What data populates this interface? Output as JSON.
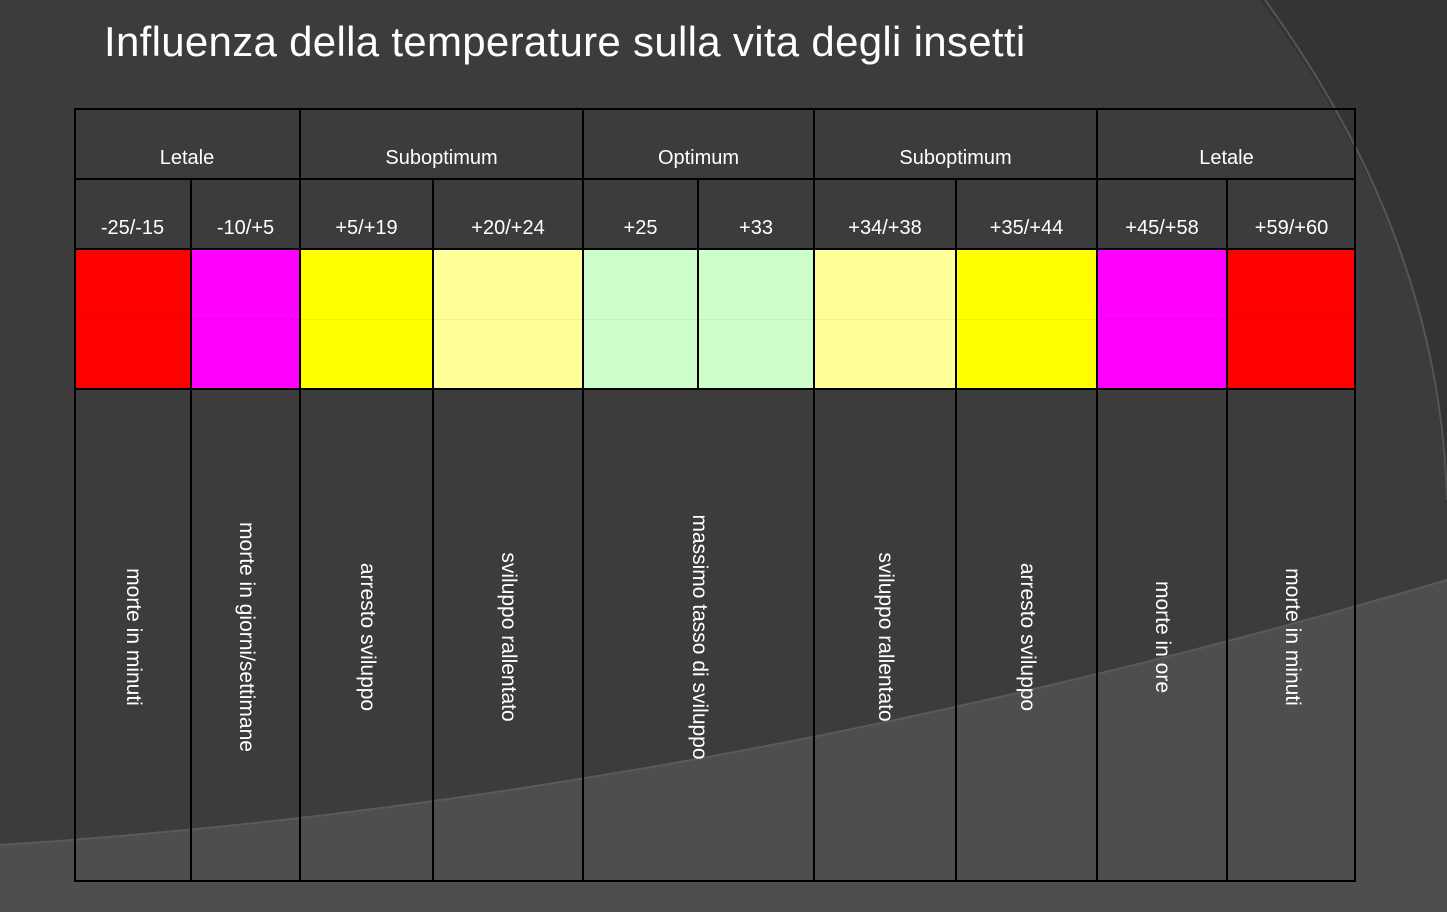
{
  "slide": {
    "title": "Influenza della temperature sulla vita degli insetti"
  },
  "table": {
    "zones": [
      {
        "label": "Letale"
      },
      {
        "label": "Suboptimum"
      },
      {
        "label": "Optimum"
      },
      {
        "label": "Suboptimum"
      },
      {
        "label": "Letale"
      }
    ],
    "ranges": [
      {
        "label": "-25/-15",
        "color": "#ff0000"
      },
      {
        "label": "-10/+5",
        "color": "#ff00ff"
      },
      {
        "label": "+5/+19",
        "color": "#ffff00"
      },
      {
        "label": "+20/+24",
        "color": "#ffff99"
      },
      {
        "label": "+25",
        "color": "#ccffcc"
      },
      {
        "label": "+33",
        "color": "#ccffcc"
      },
      {
        "label": "+34/+38",
        "color": "#ffff99"
      },
      {
        "label": "+35/+44",
        "color": "#ffff00"
      },
      {
        "label": "+45/+58",
        "color": "#ff00ff"
      },
      {
        "label": "+59/+60",
        "color": "#ff0000"
      }
    ],
    "effects": [
      {
        "label": "morte in minuti"
      },
      {
        "label": "morte in giorni/settimane"
      },
      {
        "label": "arresto sviluppo"
      },
      {
        "label": "sviluppo rallentato"
      },
      {
        "label": "massimo tasso di sviluppo"
      },
      {
        "label": "sviluppo rallentato"
      },
      {
        "label": "arresto sviluppo"
      },
      {
        "label": "morte in ore"
      },
      {
        "label": "morte in minuti"
      }
    ]
  }
}
